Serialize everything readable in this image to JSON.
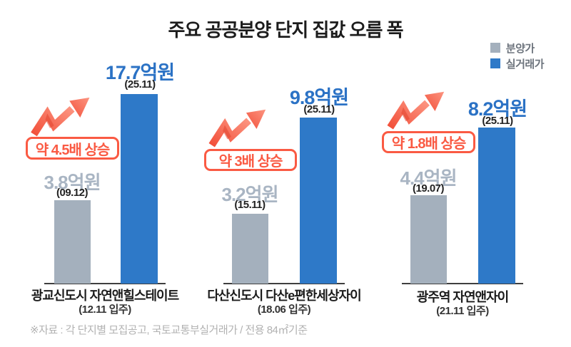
{
  "title": "주요 공공분양 단지 집값 오름 폭",
  "legend": [
    {
      "label": "분양가",
      "color": "#a4b0bd"
    },
    {
      "label": "실거래가",
      "color": "#2e79c8"
    }
  ],
  "footnote": "※자료 : 각 단지별 모집공고, 국토교통부실거래가 / 전용 84㎡기준",
  "colors": {
    "sale_price_bar": "#a4b0bd",
    "actual_price_bar": "#2e79c8",
    "actual_price_text": "#2b72c5",
    "sale_price_text": "#a9b5c3",
    "increase_accent": "#fa5a43",
    "title_text": "#1c1c1c",
    "baseline": "#3f3f3f"
  },
  "chart_data": {
    "type": "bar",
    "unit": "억원",
    "series_names": [
      "분양가",
      "실거래가"
    ],
    "legend_position": "top-right",
    "groups": [
      {
        "complex": "광교신도시 자연앤힐스테이트",
        "move_in": "(12.11 입주)",
        "sale_price": {
          "value": 3.8,
          "label": "3.8억원",
          "date": "(09.12)"
        },
        "actual_price": {
          "value": 17.7,
          "label": "17.7억원",
          "date": "(25.11)"
        },
        "increase": "약 4.5배 상승",
        "display": {
          "gray_bar_h": 117,
          "blue_bar_h": 266
        }
      },
      {
        "complex": "다산신도시 다산e편한세상자이",
        "move_in": "(18.06 입주)",
        "sale_price": {
          "value": 3.2,
          "label": "3.2억원",
          "date": "(15.11)"
        },
        "actual_price": {
          "value": 9.8,
          "label": "9.8억원",
          "date": "(25.11)"
        },
        "increase": "약 3배 상승",
        "display": {
          "gray_bar_h": 98,
          "blue_bar_h": 233
        }
      },
      {
        "complex": "광주역 자연앤자이",
        "move_in": "(21.11 입주)",
        "sale_price": {
          "value": 4.4,
          "label": "4.4억원",
          "date": "(19.07)"
        },
        "actual_price": {
          "value": 8.2,
          "label": "8.2억원",
          "date": "(25.11)"
        },
        "increase": "약 1.8배 상승",
        "display": {
          "gray_bar_h": 124,
          "blue_bar_h": 219
        }
      }
    ]
  }
}
